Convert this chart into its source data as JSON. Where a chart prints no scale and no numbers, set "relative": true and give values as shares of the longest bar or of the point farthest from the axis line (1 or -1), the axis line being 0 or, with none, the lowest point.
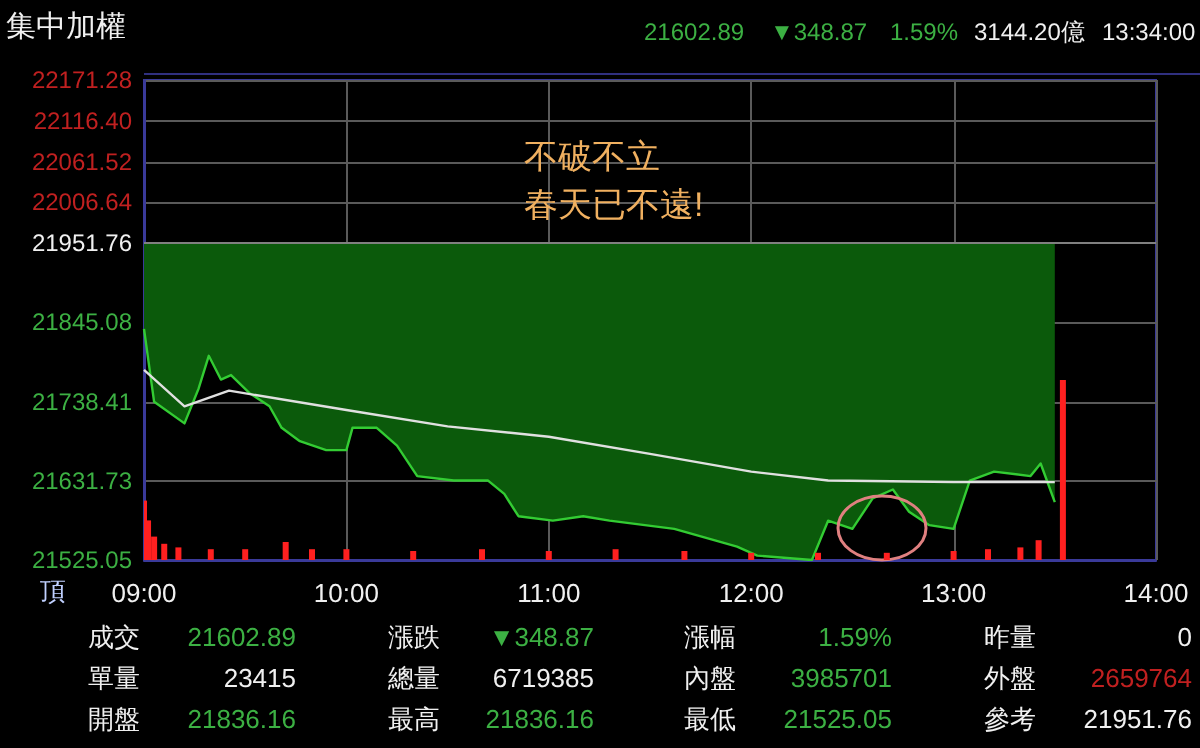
{
  "chart_data": [
    {
      "type": "line",
      "title": "集中加權",
      "annotations": [
        "21602.89",
        "▼348.87",
        "1.59%",
        "3144.20億",
        "13:34:00",
        "不破不立",
        "春天已不遠!",
        "頂",
        "成交",
        "21602.89",
        "漲跌",
        "▼348.87",
        "漲幅",
        "1.59%",
        "昨量",
        "0",
        "單量",
        "23415",
        "總量",
        "6719385",
        "內盤",
        "3985701",
        "外盤",
        "2659764",
        "開盤",
        "21836.16",
        "最高",
        "21836.16",
        "最低",
        "21525.05",
        "參考",
        "21951.76"
      ],
      "xlim": [
        9,
        14
      ],
      "xticks": [
        {
          "value": 9,
          "label": "09:00"
        },
        {
          "value": 10,
          "label": "10:00"
        },
        {
          "value": 11,
          "label": "11:00"
        },
        {
          "value": 12,
          "label": "12:00"
        },
        {
          "value": 13,
          "label": "13:00"
        },
        {
          "value": 14,
          "label": "14:00"
        }
      ],
      "ylim": [
        21525.05,
        22171.28
      ],
      "yticks": [
        21525.05,
        21631.73,
        21738.41,
        21845.08,
        21951.76,
        22006.64,
        22061.52,
        {
          "value": 22116.4,
          "label": "22116.40"
        },
        22171.28
      ],
      "grid": true,
      "ref_lines": [
        {
          "axis": "y",
          "value": 21951.76,
          "color": "#808080"
        }
      ],
      "series": [
        {
          "color": "#33cc33",
          "x": [
            9,
            9.05,
            9.2,
            9.27,
            9.32,
            9.38,
            9.43,
            9.52,
            9.62,
            9.68,
            9.77,
            9.9,
            10,
            10.03,
            10.15,
            10.25,
            10.35,
            10.53,
            10.7,
            10.78,
            10.85,
            11.02,
            11.17,
            11.3,
            11.62,
            11.93,
            12.03,
            12.3,
            12.38,
            12.5,
            12.6,
            12.7,
            12.78,
            12.88,
            13,
            13.08,
            13.2,
            13.38,
            13.43,
            13.5
          ],
          "values": [
            21836.16,
            21738,
            21709,
            21756,
            21800,
            21768,
            21774,
            21750,
            21732,
            21703,
            21685,
            21673,
            21673,
            21703,
            21703,
            21679,
            21638,
            21632,
            21632,
            21614,
            21584,
            21578,
            21584,
            21578,
            21567,
            21543,
            21531,
            21525.05,
            21578,
            21567,
            21608,
            21620,
            21590,
            21572,
            21567,
            21632,
            21644,
            21638,
            21655,
            21602.89
          ],
          "lower": [
            21836.16,
            21738,
            21709,
            21756,
            21800,
            21768,
            21774,
            21750,
            21732,
            21703,
            21685,
            21673,
            21673,
            21703,
            21703,
            21679,
            21638,
            21632,
            21632,
            21614,
            21584,
            21578,
            21584,
            21578,
            21567,
            21543,
            21531,
            21525.05,
            21578,
            21567,
            21608,
            21620,
            21590,
            21572,
            21567,
            21632,
            21644,
            21638,
            21655,
            21602.89
          ],
          "upper": [
            21951.76,
            21951.76,
            21951.76,
            21951.76,
            21951.76,
            21951.76,
            21951.76,
            21951.76,
            21951.76,
            21951.76,
            21951.76,
            21951.76,
            21951.76,
            21951.76,
            21951.76,
            21951.76,
            21951.76,
            21951.76,
            21951.76,
            21951.76,
            21951.76,
            21951.76,
            21951.76,
            21951.76,
            21951.76,
            21951.76,
            21951.76,
            21951.76,
            21951.76,
            21951.76,
            21951.76,
            21951.76,
            21951.76,
            21951.76,
            21951.76,
            21951.76,
            21951.76,
            21951.76,
            21951.76,
            21951.76
          ]
        },
        {
          "color": "#e0e0e0",
          "x": [
            9,
            9.2,
            9.42,
            10,
            10.5,
            11,
            11.5,
            12,
            12.38,
            13,
            13.5
          ],
          "values": [
            21781,
            21732,
            21753,
            21727,
            21705,
            21691,
            21668,
            21644,
            21632,
            21630,
            21630
          ]
        }
      ]
    },
    {
      "type": "bar",
      "relative": true,
      "color": "#ff2020",
      "xlim": [
        9,
        14
      ],
      "tick_labels": false,
      "x": [
        9,
        9.02,
        9.05,
        9.1,
        9.17,
        9.33,
        9.5,
        9.7,
        9.83,
        10,
        10.33,
        10.67,
        11,
        11.33,
        11.67,
        12,
        12.33,
        12.67,
        13,
        13.17,
        13.33,
        13.42,
        13.54
      ],
      "values": [
        0.33,
        0.22,
        0.13,
        0.09,
        0.07,
        0.06,
        0.06,
        0.1,
        0.06,
        0.06,
        0.05,
        0.06,
        0.05,
        0.06,
        0.05,
        0.04,
        0.04,
        0.04,
        0.05,
        0.06,
        0.07,
        0.11,
        1
      ]
    }
  ]
}
